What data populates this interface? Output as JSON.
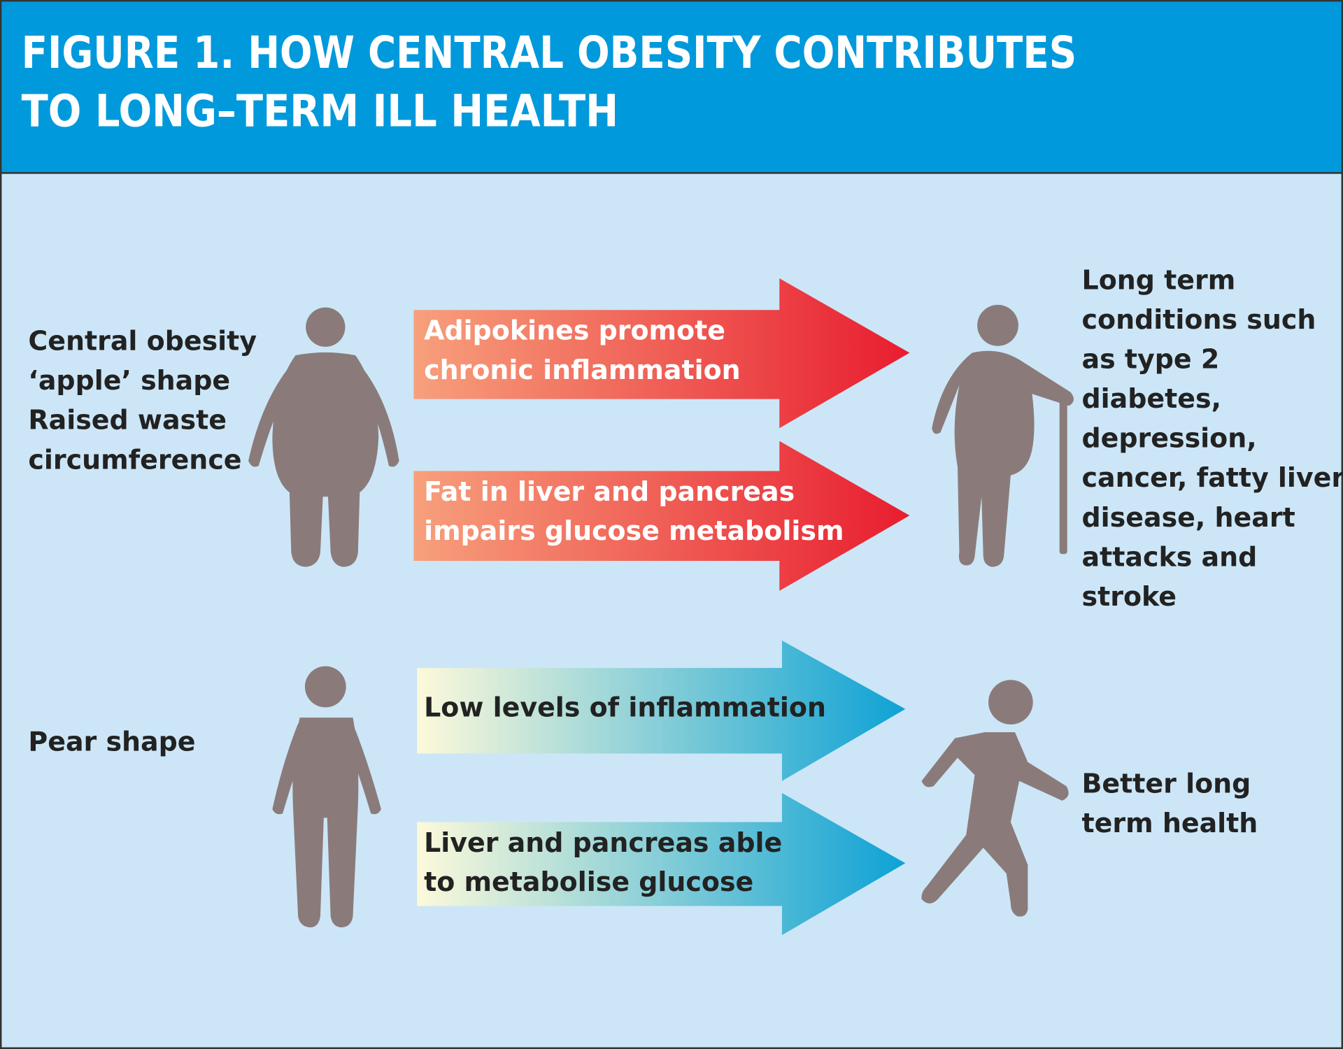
{
  "header": {
    "title": [
      "FIGURE 1. HOW CENTRAL OBESITY CONTRIBUTES",
      "TO LONG–TERM ILL HEALTH"
    ]
  },
  "rows": [
    {
      "shape": [
        "Central obesity",
        "‘apple’ shape",
        "Raised waste",
        "circumference"
      ],
      "arrows": [
        [
          "Adipokines promote",
          "chronic inflammation"
        ],
        [
          "Fat in liver and pancreas",
          "impairs glucose metabolism"
        ]
      ],
      "outcome": [
        "Long term",
        "conditions such",
        "as type 2",
        "diabetes,",
        "depression,",
        "cancer, fatty liver",
        "disease, heart",
        "attacks and",
        "stroke"
      ]
    },
    {
      "shape": [
        "Pear shape"
      ],
      "arrows": [
        [
          "Low levels of inflammation"
        ],
        [
          "Liver and pancreas able",
          "to metabolise glucose"
        ]
      ],
      "outcome": [
        "Better long",
        "term health"
      ]
    }
  ]
}
